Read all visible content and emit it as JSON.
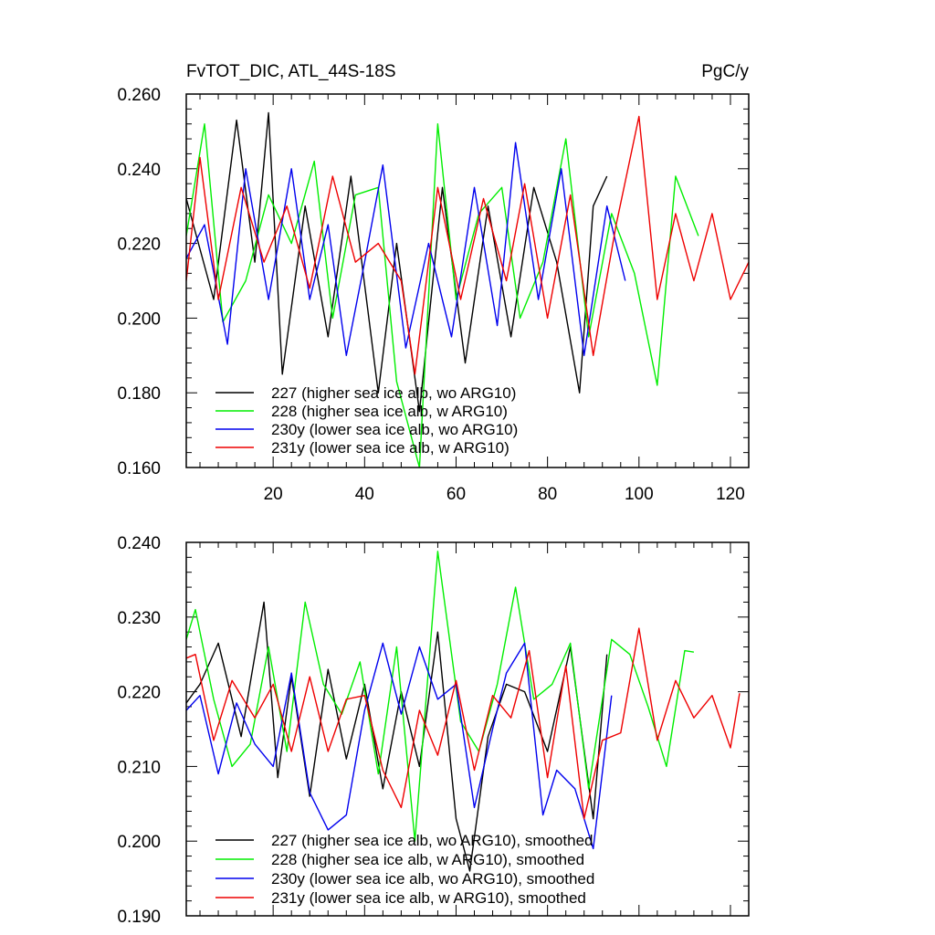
{
  "chart_data": [
    {
      "type": "line",
      "title": "FvTOT_DIC, ATL_44S-18S",
      "units": "PgC/y",
      "xlabel": "",
      "ylabel": "",
      "xlim": [
        1,
        124
      ],
      "ylim": [
        0.16,
        0.26
      ],
      "xticks": [
        20,
        40,
        60,
        80,
        100,
        120
      ],
      "xtick_labels": [
        "20",
        "40",
        "60",
        "80",
        "100",
        "120"
      ],
      "yticks": [
        0.16,
        0.18,
        0.2,
        0.22,
        0.24,
        0.26
      ],
      "ytick_labels": [
        "0.160",
        "0.180",
        "0.200",
        "0.220",
        "0.240",
        "0.260"
      ],
      "legend_position": "bottom-left",
      "series": [
        {
          "name": "227 (higher sea ice alb, wo ARG10)",
          "color": "#000000",
          "x": [
            1,
            7,
            12,
            16,
            19,
            22,
            27,
            32,
            37,
            43,
            47,
            52,
            57,
            62,
            67,
            72,
            77,
            82,
            87,
            90,
            93
          ],
          "y": [
            0.232,
            0.205,
            0.253,
            0.215,
            0.255,
            0.185,
            0.23,
            0.195,
            0.238,
            0.18,
            0.22,
            0.175,
            0.235,
            0.188,
            0.23,
            0.195,
            0.235,
            0.215,
            0.18,
            0.23,
            0.238
          ]
        },
        {
          "name": "228 (higher sea ice alb, w ARG10)",
          "color": "#00ee00",
          "x": [
            1,
            5,
            9,
            14,
            19,
            24,
            29,
            33,
            38,
            43,
            47,
            52,
            56,
            60,
            65,
            70,
            74,
            79,
            84,
            89,
            94,
            99,
            104,
            108,
            113
          ],
          "y": [
            0.222,
            0.252,
            0.199,
            0.21,
            0.233,
            0.22,
            0.242,
            0.2,
            0.233,
            0.235,
            0.183,
            0.16,
            0.252,
            0.205,
            0.228,
            0.235,
            0.2,
            0.215,
            0.248,
            0.195,
            0.228,
            0.212,
            0.182,
            0.238,
            0.222
          ]
        },
        {
          "name": "230y (lower sea ice alb, wo ARG10)",
          "color": "#0000ee",
          "x": [
            1,
            5,
            10,
            14,
            19,
            24,
            28,
            32,
            36,
            40,
            44,
            49,
            54,
            59,
            64,
            69,
            73,
            78,
            83,
            88,
            93,
            97
          ],
          "y": [
            0.216,
            0.225,
            0.193,
            0.24,
            0.205,
            0.24,
            0.205,
            0.225,
            0.19,
            0.215,
            0.241,
            0.192,
            0.22,
            0.195,
            0.235,
            0.198,
            0.247,
            0.205,
            0.24,
            0.19,
            0.23,
            0.21
          ]
        },
        {
          "name": "231y (lower sea ice alb, w ARG10)",
          "color": "#ee0000",
          "x": [
            1,
            4,
            8,
            13,
            18,
            23,
            28,
            33,
            38,
            43,
            48,
            51,
            56,
            61,
            66,
            71,
            75,
            80,
            85,
            90,
            95,
            100,
            104,
            108,
            112,
            116,
            120,
            124
          ],
          "y": [
            0.21,
            0.243,
            0.205,
            0.235,
            0.215,
            0.23,
            0.208,
            0.238,
            0.215,
            0.22,
            0.21,
            0.185,
            0.235,
            0.205,
            0.232,
            0.21,
            0.236,
            0.2,
            0.233,
            0.19,
            0.225,
            0.254,
            0.205,
            0.228,
            0.21,
            0.228,
            0.205,
            0.215
          ]
        }
      ]
    },
    {
      "type": "line",
      "title": "",
      "xlabel": "",
      "ylabel": "",
      "xlim": [
        1,
        124
      ],
      "ylim": [
        0.19,
        0.24
      ],
      "yticks": [
        0.19,
        0.2,
        0.21,
        0.22,
        0.23,
        0.24
      ],
      "ytick_labels": [
        "0.190",
        "0.200",
        "0.210",
        "0.220",
        "0.230",
        "0.240"
      ],
      "legend_position": "bottom-left",
      "series": [
        {
          "name": "227 (higher sea ice alb, wo ARG10), smoothed",
          "color": "#000000",
          "x": [
            1,
            4,
            8,
            13,
            18,
            21,
            24,
            28,
            32,
            36,
            40,
            44,
            48,
            52,
            56,
            60,
            63,
            67,
            71,
            75,
            80,
            85,
            90,
            93
          ],
          "y": [
            0.2185,
            0.221,
            0.2265,
            0.214,
            0.232,
            0.2085,
            0.222,
            0.206,
            0.223,
            0.211,
            0.221,
            0.207,
            0.22,
            0.21,
            0.228,
            0.203,
            0.196,
            0.214,
            0.221,
            0.22,
            0.212,
            0.226,
            0.203,
            0.225
          ]
        },
        {
          "name": "228 (higher sea ice alb, w ARG10), smoothed",
          "color": "#00ee00",
          "x": [
            1,
            3,
            7,
            11,
            15,
            19,
            23,
            27,
            31,
            35,
            39,
            43,
            47,
            51,
            56,
            61,
            65,
            69,
            73,
            77,
            81,
            85,
            89,
            94,
            98,
            102,
            106,
            110,
            112
          ],
          "y": [
            0.227,
            0.231,
            0.219,
            0.21,
            0.213,
            0.226,
            0.212,
            0.232,
            0.221,
            0.217,
            0.224,
            0.209,
            0.226,
            0.2,
            0.2388,
            0.216,
            0.212,
            0.221,
            0.234,
            0.219,
            0.221,
            0.2265,
            0.207,
            0.227,
            0.225,
            0.218,
            0.21,
            0.2255,
            0.2253
          ]
        },
        {
          "name": "230y (lower sea ice alb, wo ARG10), smoothed",
          "color": "#0000ee",
          "x": [
            1,
            4,
            8,
            12,
            16,
            20,
            24,
            28,
            32,
            36,
            40,
            44,
            48,
            52,
            56,
            60,
            64,
            68,
            71,
            75,
            79,
            82,
            86,
            90,
            94
          ],
          "y": [
            0.2175,
            0.2195,
            0.209,
            0.2185,
            0.213,
            0.21,
            0.2225,
            0.2065,
            0.2015,
            0.2035,
            0.2175,
            0.2265,
            0.217,
            0.226,
            0.219,
            0.221,
            0.2045,
            0.215,
            0.2225,
            0.2265,
            0.2035,
            0.2095,
            0.207,
            0.199,
            0.2195
          ]
        },
        {
          "name": "231y (lower sea ice alb, w ARG10), smoothed",
          "color": "#ee0000",
          "x": [
            1,
            3,
            7,
            11,
            16,
            20,
            24,
            28,
            32,
            36,
            40,
            44,
            48,
            52,
            56,
            60,
            64,
            68,
            72,
            76,
            80,
            84,
            88,
            92,
            96,
            100,
            104,
            108,
            112,
            116,
            120,
            122
          ],
          "y": [
            0.2245,
            0.225,
            0.2135,
            0.2215,
            0.2165,
            0.221,
            0.212,
            0.222,
            0.212,
            0.219,
            0.2195,
            0.2095,
            0.2045,
            0.2175,
            0.2115,
            0.2215,
            0.2095,
            0.2195,
            0.2165,
            0.2255,
            0.2085,
            0.2235,
            0.203,
            0.2135,
            0.2145,
            0.2285,
            0.2135,
            0.2215,
            0.2165,
            0.2195,
            0.2125,
            0.2198
          ]
        }
      ]
    }
  ]
}
